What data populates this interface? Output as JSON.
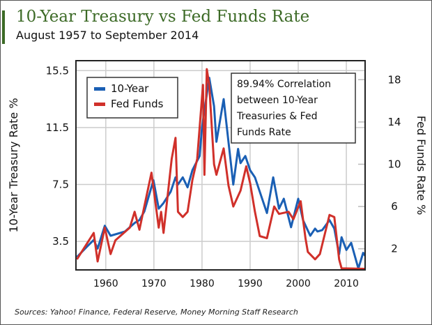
{
  "title": "10-Year Treasury vs Fed Funds Rate",
  "subtitle": "August 1957 to September 2014",
  "source": "Sources: Yahoo! Finance, Federal Reserve, Money Morning Staff Research",
  "annotation": [
    "89.94% Correlation",
    "between 10-Year",
    "Treasuries & Fed",
    "Funds Rate"
  ],
  "chart_data": {
    "type": "line",
    "title": "10-Year Treasury vs Fed Funds Rate",
    "ylabel": "10-Year Treasury Rate %",
    "y2label": "Fed Funds Rate %",
    "xlim": [
      1953.8,
      2013.9
    ],
    "ylim": [
      1.5,
      16.2
    ],
    "y2lim": [
      0,
      19.8
    ],
    "xticks": [
      1960,
      1970,
      1980,
      1990,
      2000,
      2010
    ],
    "yticks": [
      3.5,
      7.5,
      11.5,
      15.5
    ],
    "y2ticks": [
      2,
      6,
      10,
      14,
      18
    ],
    "grid": true,
    "legend": "top-left",
    "series": [
      {
        "name": "10-Year",
        "axis": "left",
        "color": "#1a5fb4",
        "x": [
          1954,
          1956,
          1957.5,
          1958.3,
          1959.8,
          1961,
          1962,
          1964,
          1966,
          1967,
          1968,
          1969.9,
          1971,
          1972,
          1973.5,
          1974.5,
          1975,
          1976,
          1977,
          1978,
          1979.5,
          1980,
          1981.5,
          1982.5,
          1983,
          1984.5,
          1985.5,
          1986.5,
          1987.5,
          1988,
          1989,
          1990,
          1991,
          1992,
          1993.5,
          1994.8,
          1996,
          1997,
          1998.5,
          2000,
          2001,
          2002.5,
          2003.5,
          2004,
          2005,
          2006.5,
          2007.5,
          2008.5,
          2009,
          2010,
          2011,
          2012.5,
          2013.5,
          2013.9
        ],
        "y": [
          2.4,
          3.1,
          3.6,
          3.0,
          4.6,
          3.9,
          4.0,
          4.2,
          4.8,
          5.0,
          5.6,
          7.8,
          5.8,
          6.2,
          7.0,
          8.0,
          7.5,
          8.0,
          7.3,
          8.5,
          9.5,
          11.5,
          15.0,
          13.0,
          10.5,
          13.5,
          10.5,
          7.5,
          10.0,
          9.0,
          9.5,
          8.5,
          8.0,
          7.0,
          5.5,
          8.0,
          5.8,
          6.5,
          4.5,
          6.5,
          5.0,
          3.9,
          4.4,
          4.2,
          4.3,
          5.0,
          4.4,
          2.6,
          3.8,
          2.9,
          3.4,
          1.6,
          2.7,
          2.5
        ]
      },
      {
        "name": "Fed Funds",
        "axis": "right",
        "color": "#d0302a",
        "x": [
          1954,
          1957.5,
          1958.3,
          1959.8,
          1961,
          1962,
          1965,
          1966,
          1967,
          1968,
          1969.5,
          1971,
          1971.5,
          1972,
          1973.7,
          1974.5,
          1975,
          1976,
          1977,
          1978,
          1979,
          1980.2,
          1980.5,
          1981,
          1981.5,
          1982.5,
          1983,
          1984.5,
          1985.5,
          1986.5,
          1987,
          1988,
          1989.2,
          1990,
          1991,
          1992,
          1993.5,
          1995,
          1996,
          1998,
          1999,
          2000.5,
          2001.5,
          2002,
          2003.5,
          2004.5,
          2006.5,
          2007.5,
          2008.5,
          2009,
          2013.9
        ],
        "y": [
          1.0,
          3.5,
          0.8,
          4.0,
          1.5,
          2.8,
          4.0,
          5.5,
          3.8,
          6.0,
          9.2,
          4.0,
          5.5,
          3.5,
          10.5,
          12.5,
          5.5,
          5.0,
          5.5,
          8.5,
          10.5,
          17.5,
          9.0,
          19.0,
          17.5,
          10,
          9,
          11.5,
          8,
          6,
          6.5,
          7.5,
          9.8,
          8.2,
          5.5,
          3.2,
          3.0,
          6.0,
          5.3,
          5.5,
          4.8,
          6.5,
          3.0,
          1.7,
          1.0,
          1.5,
          5.2,
          5.0,
          1.0,
          0.15,
          0.1
        ]
      }
    ]
  }
}
